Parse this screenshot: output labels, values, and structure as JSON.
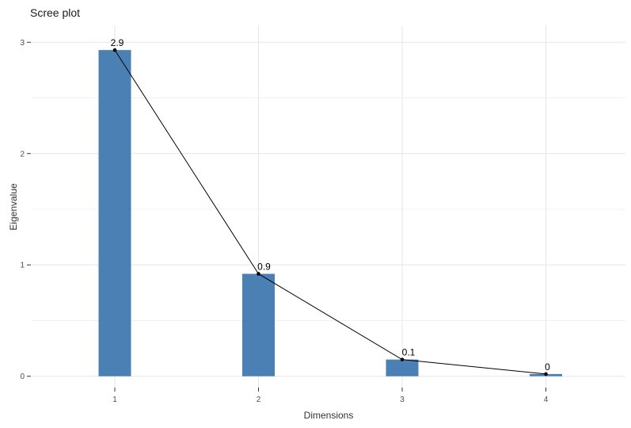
{
  "chart_data": {
    "type": "bar",
    "overlay": "line",
    "title": "Scree plot",
    "xlabel": "Dimensions",
    "ylabel": "Eigenvalue",
    "categories": [
      "1",
      "2",
      "3",
      "4"
    ],
    "values": [
      2.93,
      0.92,
      0.15,
      0.02
    ],
    "point_labels": [
      "2.9",
      "0.9",
      "0.1",
      "0"
    ],
    "ylim": [
      0,
      3.25
    ],
    "yticks": [
      0,
      1,
      2,
      3
    ],
    "minor_yticks": [
      0.5,
      1.5,
      2.5
    ],
    "grid": true,
    "legend_position": "none",
    "colors": {
      "bar": "#4B80B5",
      "line": "#000000",
      "point": "#000000",
      "point_label": "#000000",
      "grid_major": "#E6E6E6",
      "grid_minor": "#F1F1F1",
      "tick": "#333333",
      "tick_label": "#4D4D4D",
      "axis_title": "#333333",
      "title": "#1A1A1A",
      "background": "#FFFFFF"
    }
  }
}
